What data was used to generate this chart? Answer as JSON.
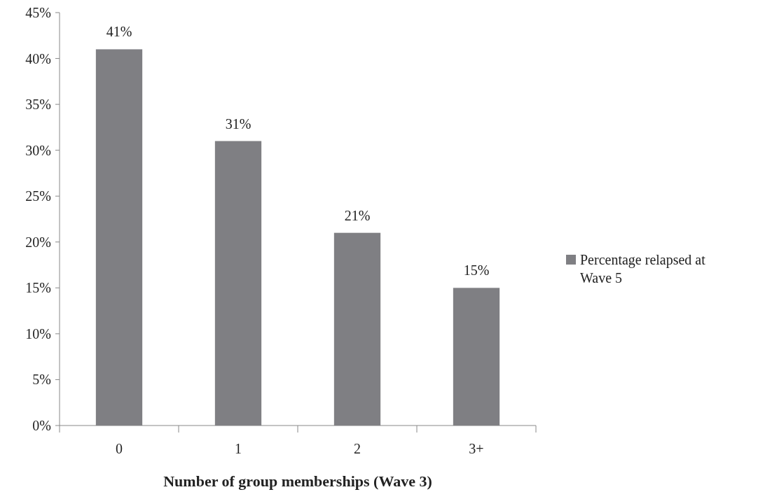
{
  "chart_data": {
    "type": "bar",
    "xlabel": "Number of group memberships (Wave 3)",
    "categories": [
      "0",
      "1",
      "2",
      "3+"
    ],
    "series": [
      {
        "name": "Percentage relapsed at Wave 5",
        "color": "#7f7f83",
        "values": [
          41,
          31,
          21,
          15
        ],
        "value_labels": [
          "41%",
          "31%",
          "21%",
          "15%"
        ]
      }
    ],
    "ylim": [
      0,
      45
    ],
    "yticks": [
      {
        "value": 0,
        "label": "0%"
      },
      {
        "value": 5,
        "label": "5%"
      },
      {
        "value": 10,
        "label": "10%"
      },
      {
        "value": 15,
        "label": "15%"
      },
      {
        "value": 20,
        "label": "20%"
      },
      {
        "value": 25,
        "label": "25%"
      },
      {
        "value": 30,
        "label": "30%"
      },
      {
        "value": 35,
        "label": "35%"
      },
      {
        "value": 40,
        "label": "40%"
      },
      {
        "value": 45,
        "label": "45%"
      }
    ],
    "grid": false,
    "legend": "right"
  }
}
